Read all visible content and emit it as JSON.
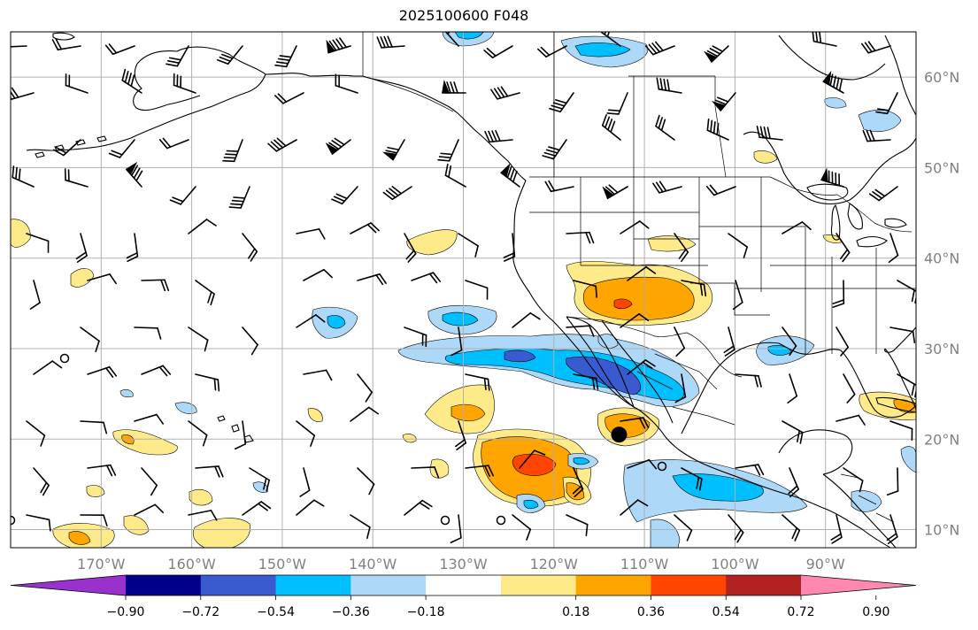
{
  "title": "2025100600 F048",
  "map": {
    "lon_range": [
      -180,
      -80
    ],
    "lat_range": [
      8,
      65
    ],
    "lon_labels": [
      {
        "lon": -170,
        "label": "170°W"
      },
      {
        "lon": -160,
        "label": "160°W"
      },
      {
        "lon": -150,
        "label": "150°W"
      },
      {
        "lon": -140,
        "label": "140°W"
      },
      {
        "lon": -130,
        "label": "130°W"
      },
      {
        "lon": -120,
        "label": "120°W"
      },
      {
        "lon": -110,
        "label": "110°W"
      },
      {
        "lon": -100,
        "label": "100°W"
      },
      {
        "lon": -90,
        "label": "90°W"
      }
    ],
    "lat_labels": [
      {
        "lat": 60,
        "label": "60°N"
      },
      {
        "lat": 50,
        "label": "50°N"
      },
      {
        "lat": 40,
        "label": "40°N"
      },
      {
        "lat": 30,
        "label": "30°N"
      },
      {
        "lat": 20,
        "label": "20°N"
      },
      {
        "lat": 10,
        "label": "10°N"
      }
    ],
    "marker": {
      "lon": -112.8,
      "lat": 20.5
    }
  },
  "colorbar": {
    "ticks": [
      "−0.90",
      "−0.72",
      "−0.54",
      "−0.36",
      "−0.18",
      "0.18",
      "0.36",
      "0.54",
      "0.72",
      "0.90"
    ],
    "colors": [
      "#9932cc",
      "#00008b",
      "#3a5bd0",
      "#00bfff",
      "#add8f8",
      "#ffffff",
      "#ffea8a",
      "#ffa500",
      "#ff4500",
      "#b22222",
      "#ff88b0"
    ]
  }
}
